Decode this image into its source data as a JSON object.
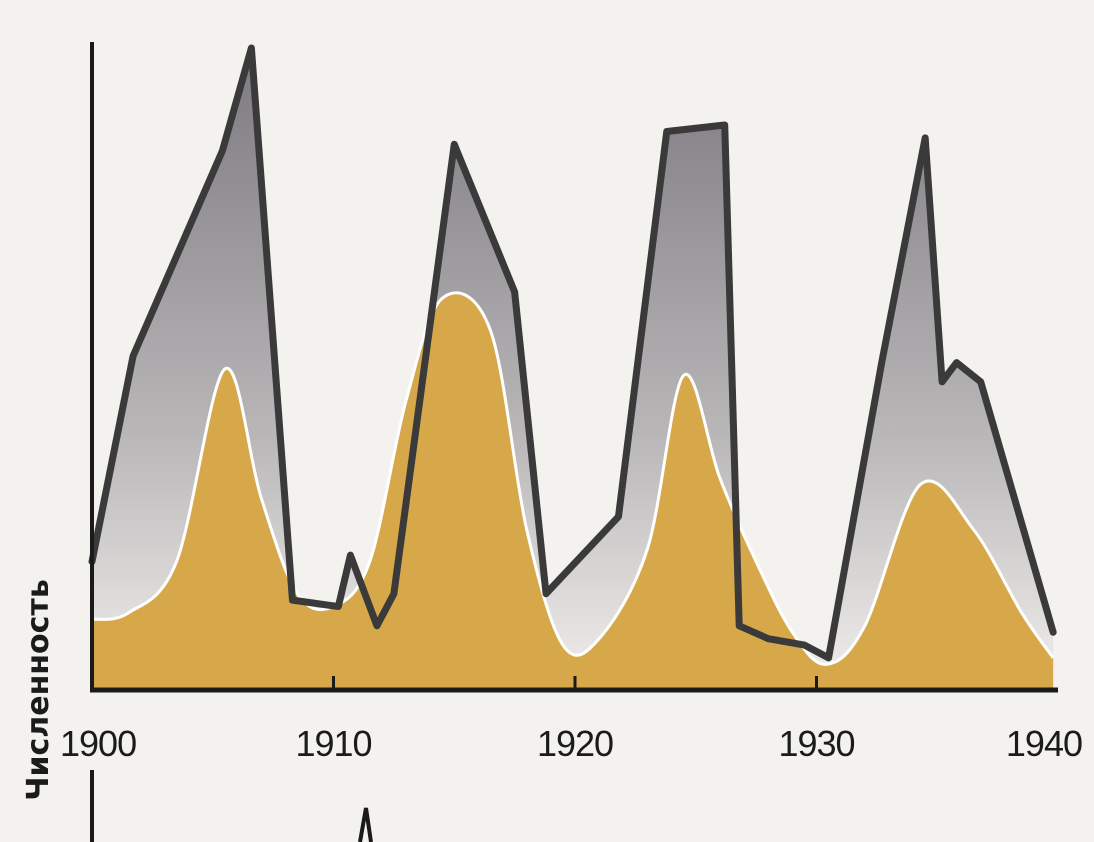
{
  "chart_data": {
    "type": "area",
    "title": "",
    "xlabel": "",
    "ylabel": "Численность",
    "xlim": [
      1900,
      1940
    ],
    "x_ticks": [
      "1900",
      "1910",
      "1920",
      "1930",
      "1940"
    ],
    "grid": false,
    "legend": "none",
    "colors": {
      "predator_fill": "#d6a84a",
      "prey_line": "#3a3a3a",
      "prey_fill_top": "#7d7a80",
      "prey_fill_bottom": "#f1efec",
      "axis": "#1a1a1a"
    },
    "series": [
      {
        "x": [
          1900,
          1901.7,
          1905.4,
          1906.6,
          1908.3,
          1910.2,
          1910.7,
          1911.8,
          1912.5,
          1915,
          1917.5,
          1918.8,
          1921.8,
          1923.8,
          1926.2,
          1926.8,
          1928,
          1929.5,
          1930.5,
          1932.7,
          1934.5,
          1935.2,
          1935.8,
          1936.8,
          1939.8
        ],
        "values": [
          20,
          52,
          84,
          100,
          14,
          13,
          21,
          10,
          15,
          85,
          62,
          15,
          27,
          87,
          88,
          10,
          8,
          7,
          5,
          51,
          86,
          48,
          51,
          48,
          9
        ]
      },
      {
        "x": [
          1900,
          1901.5,
          1903.5,
          1905.5,
          1907,
          1908.5,
          1910,
          1911.5,
          1913,
          1914.5,
          1916.5,
          1918,
          1919.5,
          1921,
          1923,
          1924.5,
          1926,
          1927.5,
          1929,
          1930.4,
          1932,
          1934.3,
          1936.5,
          1938.5,
          1939.8
        ],
        "values": [
          11,
          12,
          20,
          50,
          30,
          15,
          13,
          20,
          45,
          61,
          56,
          25,
          7,
          8,
          22,
          49,
          33,
          20,
          9,
          4,
          10,
          32,
          25,
          12,
          5
        ]
      }
    ]
  }
}
